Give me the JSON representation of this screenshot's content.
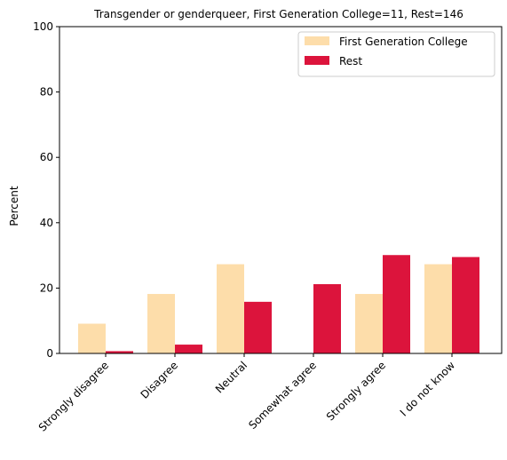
{
  "chart_data": {
    "type": "bar",
    "title": "Transgender or genderqueer, First Generation College=11, Rest=146",
    "xlabel": "",
    "ylabel": "Percent",
    "ylim": [
      0,
      100
    ],
    "yticks": [
      0,
      20,
      40,
      60,
      80,
      100
    ],
    "grid": false,
    "legend_position": "top-right",
    "categories": [
      "Strongly disagree",
      "Disagree",
      "Neutral",
      "Somewhat agree",
      "Strongly agree",
      "I do not know"
    ],
    "series": [
      {
        "name": "First Generation College",
        "color": "#FDDDAA",
        "values": [
          9.1,
          18.2,
          27.3,
          0.0,
          18.2,
          27.3
        ]
      },
      {
        "name": "Rest",
        "color": "#DC143C",
        "values": [
          0.7,
          2.7,
          15.8,
          21.2,
          30.1,
          29.5
        ]
      }
    ]
  }
}
